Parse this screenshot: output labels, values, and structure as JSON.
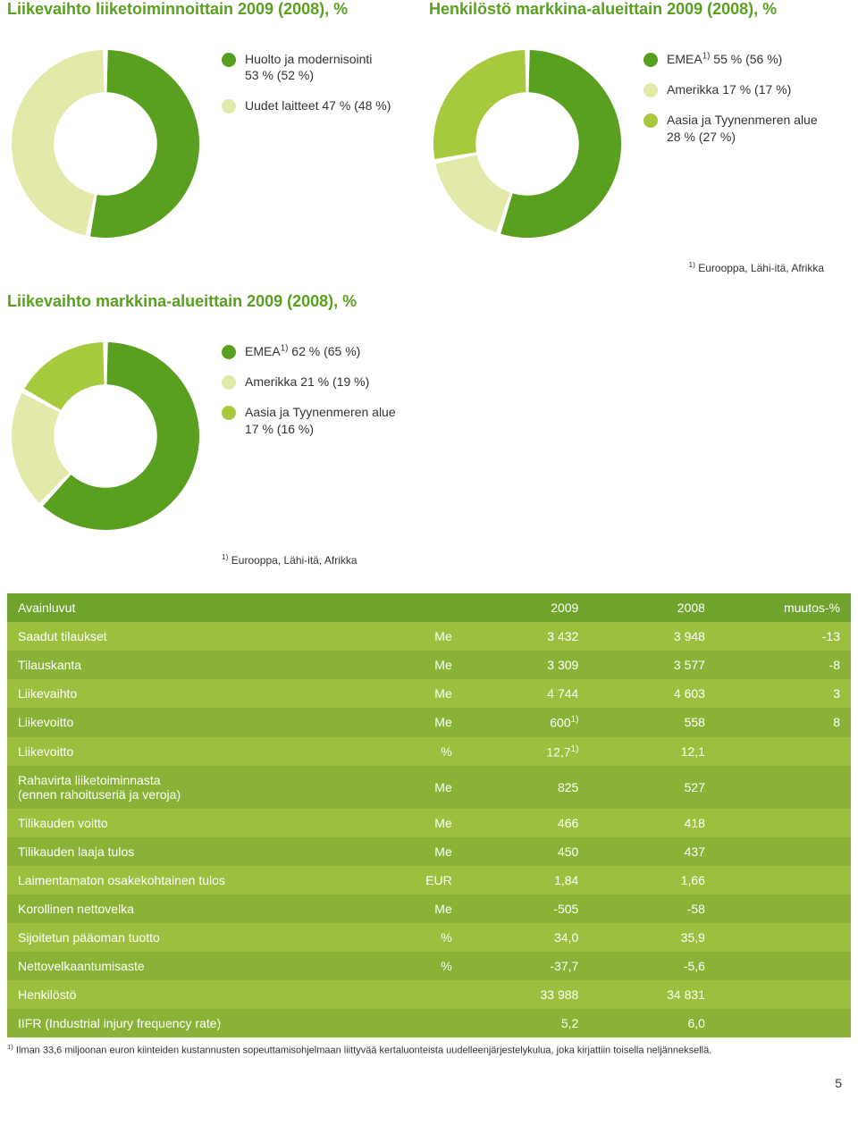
{
  "colors": {
    "green_dark": "#5aa020",
    "green_med": "#a7c93e",
    "green_pale": "#e3e9a8",
    "green_yellow": "#c9d94d",
    "header_bg": "#6fa32c",
    "row_odd": "#9cbf3f",
    "row_even": "#8ab236",
    "text": "#333333"
  },
  "chart1": {
    "title": "Liikevaihto liiketoiminnoittain 2009 (2008), %",
    "type": "donut",
    "inner_radius_pct": 55,
    "legend": [
      {
        "label": "Huolto ja modernisointi",
        "sub": " 53 % (52 %)",
        "color": "#5aa020"
      },
      {
        "label": "Uudet laitteet 47 % (48 %)",
        "sub": "",
        "color": "#e3e9a8"
      }
    ],
    "slices": [
      {
        "value": 53,
        "color": "#5aa020"
      },
      {
        "value": 47,
        "color": "#e3e9a8"
      }
    ]
  },
  "chart2": {
    "title": "Henkilöstö markkina-alueittain 2009 (2008), %",
    "type": "donut",
    "inner_radius_pct": 55,
    "legend": [
      {
        "label_html": "EMEA<sup>1)</sup> 55 % (56 %)",
        "color": "#5aa020"
      },
      {
        "label_html": "Amerikka 17 % (17 %)",
        "color": "#e3e9a8"
      },
      {
        "label_html": "Aasia ja Tyynenmeren alue",
        "sub": "28 % (27 %)",
        "color": "#a7c93e"
      }
    ],
    "slices": [
      {
        "value": 55,
        "color": "#5aa020"
      },
      {
        "value": 17,
        "color": "#e3e9a8"
      },
      {
        "value": 28,
        "color": "#a7c93e"
      }
    ],
    "footnote_html": "<sup>1)</sup> Eurooppa, Lähi-itä, Afrikka"
  },
  "chart3": {
    "title": "Liikevaihto markkina-alueittain 2009 (2008), %",
    "type": "donut",
    "inner_radius_pct": 55,
    "legend": [
      {
        "label_html": "EMEA<sup>1)</sup> 62 % (65 %)",
        "color": "#5aa020"
      },
      {
        "label_html": "Amerikka 21 % (19 %)",
        "color": "#e3e9a8"
      },
      {
        "label_html": "Aasia ja Tyynenmeren alue",
        "sub": "17 % (16 %)",
        "color": "#a7c93e"
      }
    ],
    "slices": [
      {
        "value": 62,
        "color": "#5aa020"
      },
      {
        "value": 21,
        "color": "#e3e9a8"
      },
      {
        "value": 17,
        "color": "#a7c93e"
      }
    ],
    "footnote_html": "<sup>1)</sup> Eurooppa, Lähi-itä, Afrikka"
  },
  "table": {
    "headers": [
      "Avainluvut",
      "",
      "2009",
      "2008",
      "muutos-%"
    ],
    "rows": [
      [
        "Saadut tilaukset",
        "Me",
        "3 432",
        "3 948",
        "-13"
      ],
      [
        "Tilauskanta",
        "Me",
        "3 309",
        "3 577",
        "-8"
      ],
      [
        "Liikevaihto",
        "Me",
        "4 744",
        "4 603",
        "3"
      ],
      [
        "Liikevoitto",
        "Me",
        "600<sup>1)</sup>",
        "558",
        "8"
      ],
      [
        "Liikevoitto",
        "%",
        "12,7<sup>1)</sup>",
        "12,1",
        ""
      ],
      [
        "Rahavirta liiketoiminnasta<br>(ennen rahoituseriä ja veroja)",
        "Me",
        "825",
        "527",
        ""
      ],
      [
        "Tilikauden voitto",
        "Me",
        "466",
        "418",
        ""
      ],
      [
        "Tilikauden laaja tulos",
        "Me",
        "450",
        "437",
        ""
      ],
      [
        "Laimentamaton osakekohtainen tulos",
        "EUR",
        "1,84",
        "1,66",
        ""
      ],
      [
        "Korollinen nettovelka",
        "Me",
        "-505",
        "-58",
        ""
      ],
      [
        "Sijoitetun pääoman tuotto",
        "%",
        "34,0",
        "35,9",
        ""
      ],
      [
        "Nettovelkaantumisaste",
        "%",
        "-37,7",
        "-5,6",
        ""
      ],
      [
        "Henkilöstö",
        "",
        "33 988",
        "34 831",
        ""
      ],
      [
        "IIFR (Industrial injury frequency rate)",
        "",
        "5,2",
        "6,0",
        ""
      ]
    ],
    "col_widths_pct": [
      42,
      12,
      15,
      15,
      16
    ],
    "footnote_html": "<sup>1)</sup> Ilman 33,6 miljoonan euron kiinteiden kustannusten sopeuttamisohjelmaan liittyvää kertaluonteista uudelleenjärjestelykulua, joka kirjattiin toisella neljänneksellä."
  },
  "page_number": "5"
}
